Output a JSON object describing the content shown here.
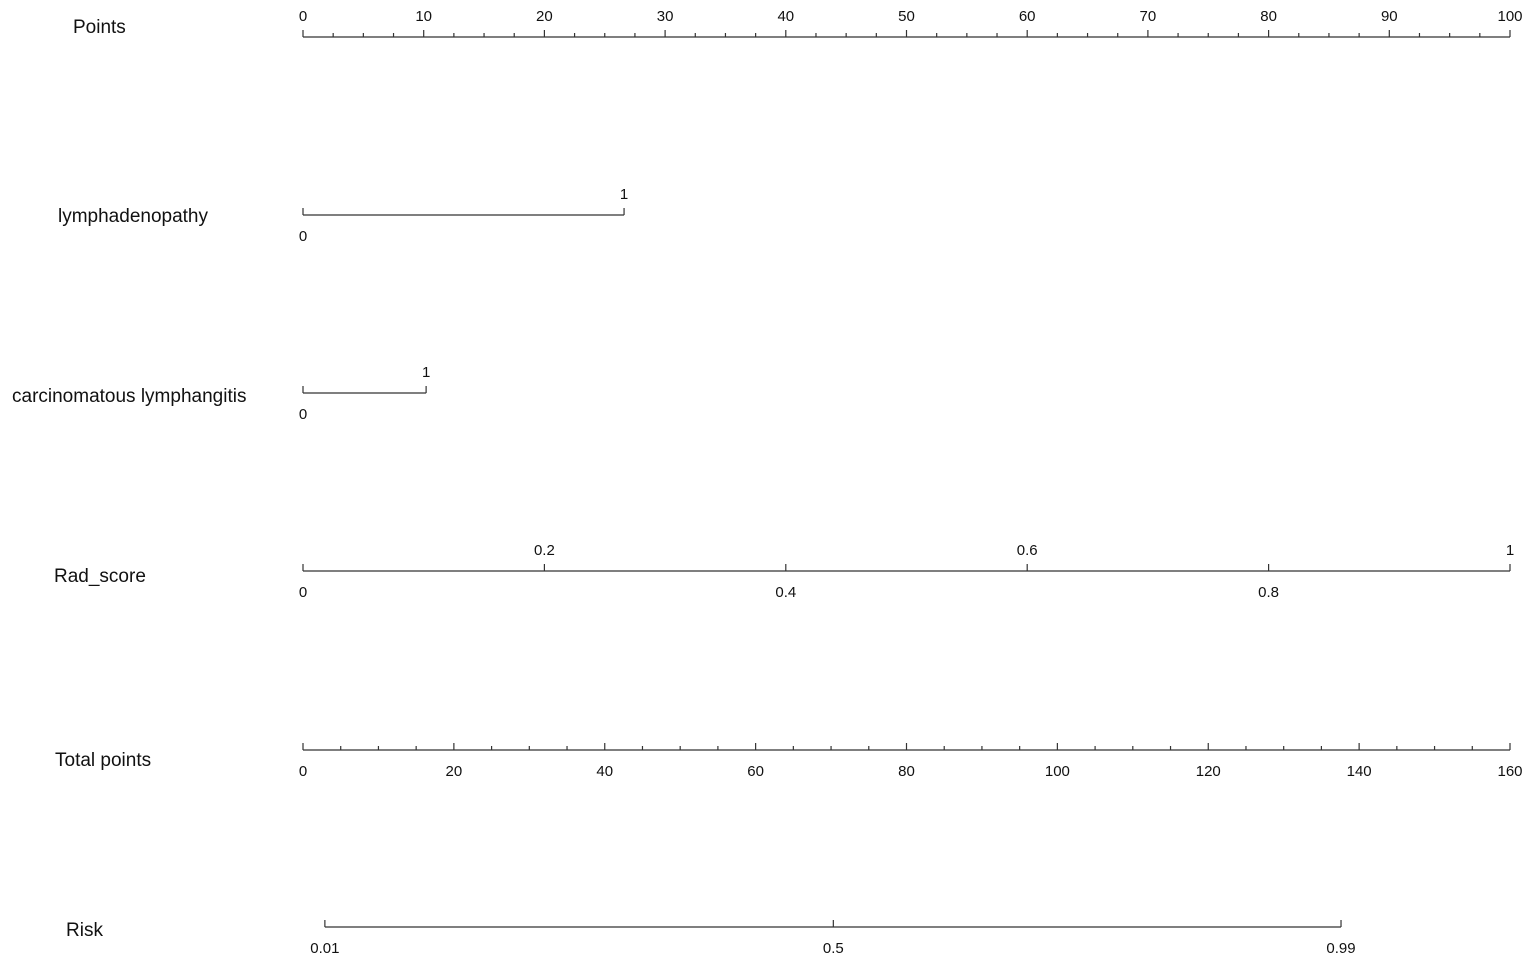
{
  "chart_data": {
    "type": "nomogram",
    "minor_ticks": true,
    "rows": [
      {
        "name": "Points",
        "xlim": [
          0,
          100
        ],
        "ticks": [
          0,
          10,
          20,
          30,
          40,
          50,
          60,
          70,
          80,
          90,
          100
        ]
      },
      {
        "name": "lymphadenopathy",
        "ticks": [
          0,
          {
            "value": 26.6,
            "label": "1"
          }
        ]
      },
      {
        "name": "carcinomatous lymphangitis",
        "ticks": [
          0,
          {
            "value": 10.2,
            "label": "1"
          }
        ]
      },
      {
        "name": "Rad_score",
        "ticks": [
          0,
          {
            "value": 20,
            "label": "0.2"
          },
          {
            "value": 40,
            "label": "0.4"
          },
          {
            "value": 60,
            "label": "0.6"
          },
          {
            "value": 80,
            "label": "0.8"
          },
          {
            "value": 100,
            "label": "1"
          }
        ]
      },
      {
        "name": "Total points",
        "xlim": [
          0,
          160
        ],
        "ticks": [
          0,
          20,
          40,
          60,
          80,
          100,
          120,
          140,
          160
        ]
      },
      {
        "name": "Risk",
        "ticks": [
          {
            "value": 2.9,
            "label": "0.01"
          },
          {
            "value": 70.3,
            "label": "0.5"
          },
          {
            "value": 137.6,
            "label": "0.99"
          }
        ]
      }
    ]
  }
}
